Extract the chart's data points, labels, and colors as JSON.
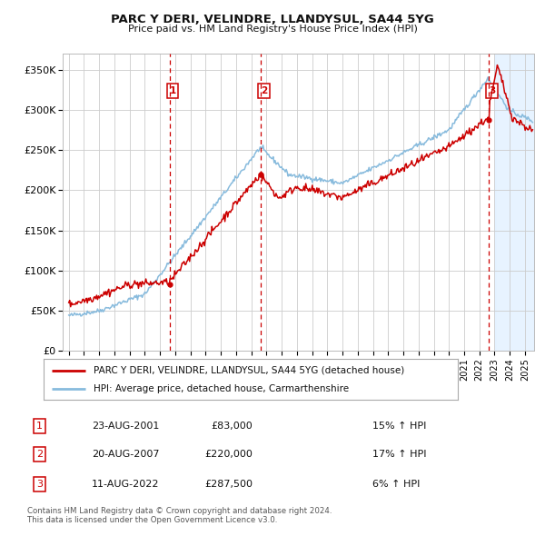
{
  "title": "PARC Y DERI, VELINDRE, LLANDYSUL, SA44 5YG",
  "subtitle": "Price paid vs. HM Land Registry's House Price Index (HPI)",
  "ylim": [
    0,
    370000
  ],
  "yticks": [
    0,
    50000,
    100000,
    150000,
    200000,
    250000,
    300000,
    350000
  ],
  "ytick_labels": [
    "£0",
    "£50K",
    "£100K",
    "£150K",
    "£200K",
    "£250K",
    "£300K",
    "£350K"
  ],
  "sale_prices": [
    83000,
    220000,
    287500
  ],
  "sale_labels": [
    "1",
    "2",
    "3"
  ],
  "sale_pct": [
    "15% ↑ HPI",
    "17% ↑ HPI",
    "6% ↑ HPI"
  ],
  "sale_date_labels": [
    "23-AUG-2001",
    "20-AUG-2007",
    "11-AUG-2022"
  ],
  "sale_price_labels": [
    "£83,000",
    "£220,000",
    "£287,500"
  ],
  "sale_year_floats": [
    2001.64,
    2007.64,
    2022.62
  ],
  "line1_label": "PARC Y DERI, VELINDRE, LLANDYSUL, SA44 5YG (detached house)",
  "line2_label": "HPI: Average price, detached house, Carmarthenshire",
  "line1_color": "#cc0000",
  "line2_color": "#88bbdd",
  "footer": "Contains HM Land Registry data © Crown copyright and database right 2024.\nThis data is licensed under the Open Government Licence v3.0.",
  "bg_color": "#ffffff",
  "grid_color": "#cccccc",
  "shade_color": "#ddeeff",
  "xlim_left": 1994.6,
  "xlim_right": 2025.6,
  "shade_start": 2023.05,
  "shade_end": 2025.6
}
